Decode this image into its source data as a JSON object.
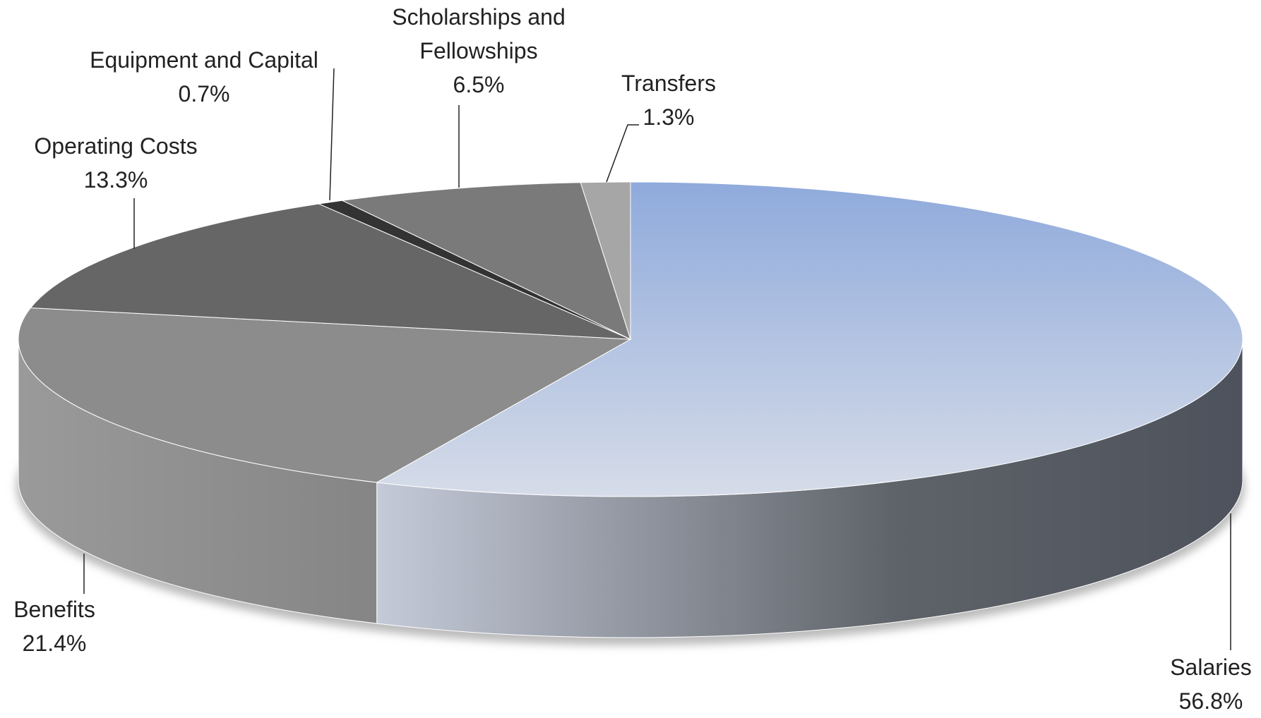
{
  "chart_data": {
    "type": "pie3d",
    "categories": [
      "Salaries",
      "Benefits",
      "Operating Costs",
      "Equipment and Capital",
      "Scholarships and Fellowships",
      "Transfers"
    ],
    "values": [
      56.8,
      21.4,
      13.3,
      0.7,
      6.5,
      1.3
    ],
    "value_labels": [
      "56.8%",
      "21.4%",
      "13.3%",
      "0.7%",
      "6.5%",
      "1.3%"
    ],
    "colors": [
      "#8faadc",
      "#8c8c8c",
      "#666666",
      "#333333",
      "#7a7a7a",
      "#a6a6a6"
    ]
  }
}
